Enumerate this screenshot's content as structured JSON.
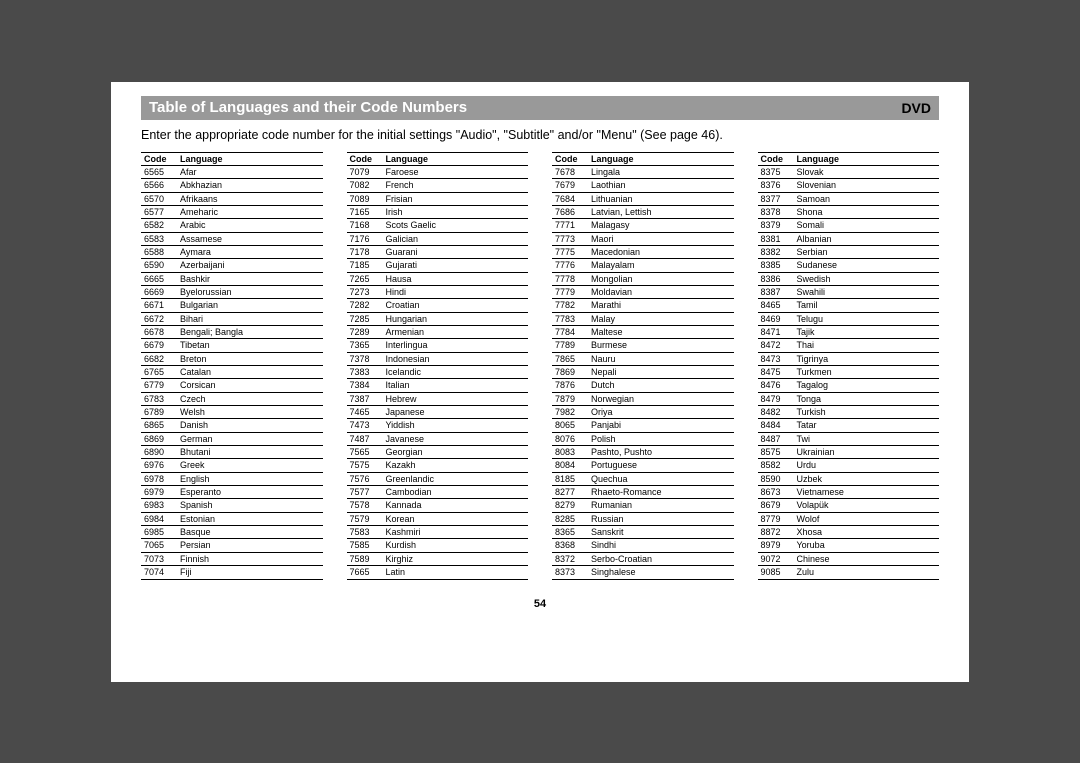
{
  "header": {
    "title": "Table of Languages and their Code Numbers",
    "badge": "DVD"
  },
  "intro": "Enter the appropriate code number for the initial settings \"Audio\", \"Subtitle\" and/or \"Menu\" (See page 46).",
  "columns_header": {
    "code": "Code",
    "language": "Language"
  },
  "columns": [
    [
      [
        "6565",
        "Afar"
      ],
      [
        "6566",
        "Abkhazian"
      ],
      [
        "6570",
        "Afrikaans"
      ],
      [
        "6577",
        "Ameharic"
      ],
      [
        "6582",
        "Arabic"
      ],
      [
        "6583",
        "Assamese"
      ],
      [
        "6588",
        "Aymara"
      ],
      [
        "6590",
        "Azerbaijani"
      ],
      [
        "6665",
        "Bashkir"
      ],
      [
        "6669",
        "Byelorussian"
      ],
      [
        "6671",
        "Bulgarian"
      ],
      [
        "6672",
        "Bihari"
      ],
      [
        "6678",
        "Bengali; Bangla"
      ],
      [
        "6679",
        "Tibetan"
      ],
      [
        "6682",
        "Breton"
      ],
      [
        "6765",
        "Catalan"
      ],
      [
        "6779",
        "Corsican"
      ],
      [
        "6783",
        "Czech"
      ],
      [
        "6789",
        "Welsh"
      ],
      [
        "6865",
        "Danish"
      ],
      [
        "6869",
        "German"
      ],
      [
        "6890",
        "Bhutani"
      ],
      [
        "6976",
        "Greek"
      ],
      [
        "6978",
        "English"
      ],
      [
        "6979",
        "Esperanto"
      ],
      [
        "6983",
        "Spanish"
      ],
      [
        "6984",
        "Estonian"
      ],
      [
        "6985",
        "Basque"
      ],
      [
        "7065",
        "Persian"
      ],
      [
        "7073",
        "Finnish"
      ],
      [
        "7074",
        "Fiji"
      ]
    ],
    [
      [
        "7079",
        "Faroese"
      ],
      [
        "7082",
        "French"
      ],
      [
        "7089",
        "Frisian"
      ],
      [
        "7165",
        "Irish"
      ],
      [
        "7168",
        "Scots Gaelic"
      ],
      [
        "7176",
        "Galician"
      ],
      [
        "7178",
        "Guarani"
      ],
      [
        "7185",
        "Gujarati"
      ],
      [
        "7265",
        "Hausa"
      ],
      [
        "7273",
        "Hindi"
      ],
      [
        "7282",
        "Croatian"
      ],
      [
        "7285",
        "Hungarian"
      ],
      [
        "7289",
        "Armenian"
      ],
      [
        "7365",
        "Interlingua"
      ],
      [
        "7378",
        "Indonesian"
      ],
      [
        "7383",
        "Icelandic"
      ],
      [
        "7384",
        "Italian"
      ],
      [
        "7387",
        "Hebrew"
      ],
      [
        "7465",
        "Japanese"
      ],
      [
        "7473",
        "Yiddish"
      ],
      [
        "7487",
        "Javanese"
      ],
      [
        "7565",
        "Georgian"
      ],
      [
        "7575",
        "Kazakh"
      ],
      [
        "7576",
        "Greenlandic"
      ],
      [
        "7577",
        "Cambodian"
      ],
      [
        "7578",
        "Kannada"
      ],
      [
        "7579",
        "Korean"
      ],
      [
        "7583",
        "Kashmiri"
      ],
      [
        "7585",
        "Kurdish"
      ],
      [
        "7589",
        "Kirghiz"
      ],
      [
        "7665",
        "Latin"
      ]
    ],
    [
      [
        "7678",
        "Lingala"
      ],
      [
        "7679",
        "Laothian"
      ],
      [
        "7684",
        "Lithuanian"
      ],
      [
        "7686",
        "Latvian, Lettish"
      ],
      [
        "7771",
        "Malagasy"
      ],
      [
        "7773",
        "Maori"
      ],
      [
        "7775",
        "Macedonian"
      ],
      [
        "7776",
        "Malayalam"
      ],
      [
        "7778",
        "Mongolian"
      ],
      [
        "7779",
        "Moldavian"
      ],
      [
        "7782",
        "Marathi"
      ],
      [
        "7783",
        "Malay"
      ],
      [
        "7784",
        "Maltese"
      ],
      [
        "7789",
        "Burmese"
      ],
      [
        "7865",
        "Nauru"
      ],
      [
        "7869",
        "Nepali"
      ],
      [
        "7876",
        "Dutch"
      ],
      [
        "7879",
        "Norwegian"
      ],
      [
        "7982",
        "Oriya"
      ],
      [
        "8065",
        "Panjabi"
      ],
      [
        "8076",
        "Polish"
      ],
      [
        "8083",
        "Pashto, Pushto"
      ],
      [
        "8084",
        "Portuguese"
      ],
      [
        "8185",
        "Quechua"
      ],
      [
        "8277",
        "Rhaeto-Romance"
      ],
      [
        "8279",
        "Rumanian"
      ],
      [
        "8285",
        "Russian"
      ],
      [
        "8365",
        "Sanskrit"
      ],
      [
        "8368",
        "Sindhi"
      ],
      [
        "8372",
        "Serbo-Croatian"
      ],
      [
        "8373",
        "Singhalese"
      ]
    ],
    [
      [
        "8375",
        "Slovak"
      ],
      [
        "8376",
        "Slovenian"
      ],
      [
        "8377",
        "Samoan"
      ],
      [
        "8378",
        "Shona"
      ],
      [
        "8379",
        "Somali"
      ],
      [
        "8381",
        "Albanian"
      ],
      [
        "8382",
        "Serbian"
      ],
      [
        "8385",
        "Sudanese"
      ],
      [
        "8386",
        "Swedish"
      ],
      [
        "8387",
        "Swahili"
      ],
      [
        "8465",
        "Tamil"
      ],
      [
        "8469",
        "Telugu"
      ],
      [
        "8471",
        "Tajik"
      ],
      [
        "8472",
        "Thai"
      ],
      [
        "8473",
        "Tigrinya"
      ],
      [
        "8475",
        "Turkmen"
      ],
      [
        "8476",
        "Tagalog"
      ],
      [
        "8479",
        "Tonga"
      ],
      [
        "8482",
        "Turkish"
      ],
      [
        "8484",
        "Tatar"
      ],
      [
        "8487",
        "Twi"
      ],
      [
        "8575",
        "Ukrainian"
      ],
      [
        "8582",
        "Urdu"
      ],
      [
        "8590",
        "Uzbek"
      ],
      [
        "8673",
        "Vietnamese"
      ],
      [
        "8679",
        "Volapük"
      ],
      [
        "8779",
        "Wolof"
      ],
      [
        "8872",
        "Xhosa"
      ],
      [
        "8979",
        "Yoruba"
      ],
      [
        "9072",
        "Chinese"
      ],
      [
        "9085",
        "Zulu"
      ]
    ]
  ],
  "page_number": "54",
  "styling": {
    "page_bg": "#ffffff",
    "body_bg": "#4a4a4a",
    "header_bg": "#999999",
    "header_text_color": "#ffffff",
    "badge_text_color": "#000000",
    "table_border_color": "#000000",
    "body_font_family": "Arial, Helvetica, sans-serif",
    "table_font_size_pt": 7,
    "header_title_font_size_pt": 12,
    "intro_font_size_pt": 10
  }
}
